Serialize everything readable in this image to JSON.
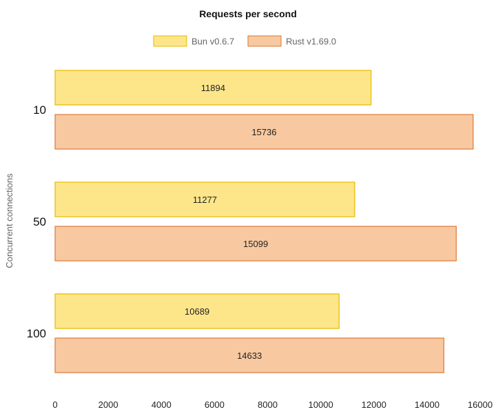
{
  "chart_data": {
    "type": "bar",
    "orientation": "horizontal",
    "title": "Requests per second",
    "ylabel": "Concurrent connections",
    "xlabel": "",
    "categories": [
      "10",
      "50",
      "100"
    ],
    "series": [
      {
        "name": "Bun v0.6.7",
        "values": [
          11894,
          11277,
          10689
        ],
        "fill": "#fde68a",
        "stroke": "#e6b800"
      },
      {
        "name": "Rust v1.69.0",
        "values": [
          15736,
          15099,
          14633
        ],
        "fill": "#f8c9a0",
        "stroke": "#d9773a"
      }
    ],
    "xlim": [
      0,
      16000
    ],
    "xticks": [
      0,
      2000,
      4000,
      6000,
      8000,
      10000,
      12000,
      14000,
      16000
    ],
    "legend": "top-center",
    "grid": false
  }
}
